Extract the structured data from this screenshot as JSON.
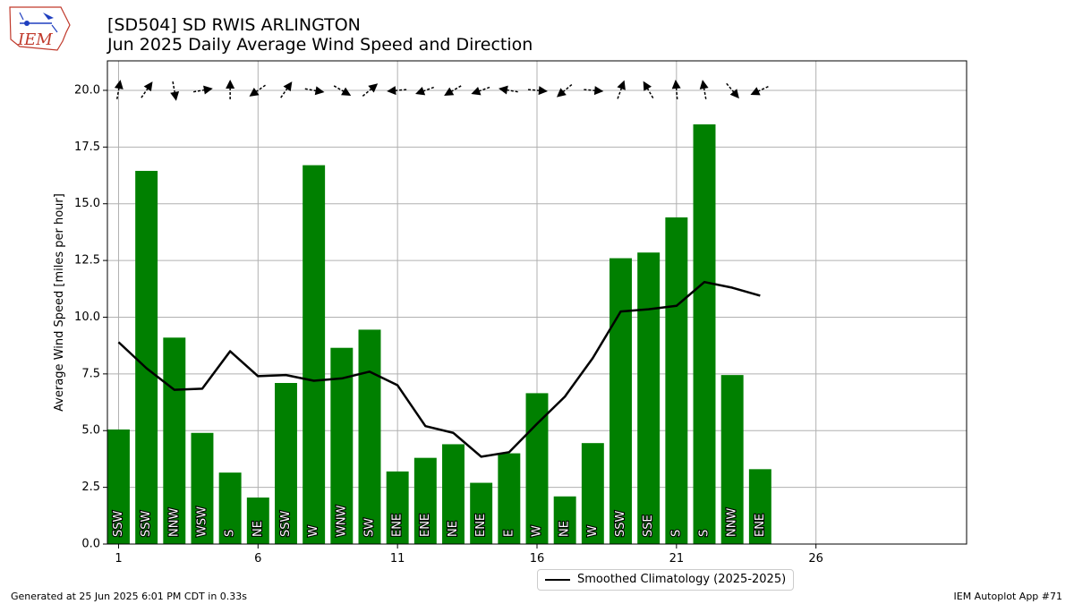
{
  "header": {
    "title": "[SD504] SD RWIS ARLINGTON",
    "subtitle": "Jun 2025 Daily Average Wind Speed and Direction"
  },
  "logo": {
    "text": "IEM",
    "color": "#c0392b"
  },
  "legend": {
    "label": "Smoothed Climatology (2025-2025)",
    "placement": "below-center"
  },
  "footer": {
    "generated": "Generated at 25 Jun 2025 6:01 PM CDT in 0.33s",
    "app": "IEM Autoplot App #71"
  },
  "chart_data": {
    "type": "bar",
    "ylabel": "Average Wind Speed [miles per hour]",
    "xlabel": "",
    "xlim": [
      0.6,
      31.4
    ],
    "ylim": [
      0,
      21.3
    ],
    "xticks": [
      1,
      6,
      11,
      16,
      21,
      26
    ],
    "yticks": [
      0.0,
      2.5,
      5.0,
      7.5,
      10.0,
      12.5,
      15.0,
      17.5,
      20.0
    ],
    "grid": true,
    "bar_color": "#008000",
    "line_color": "#000000",
    "days": [
      1,
      2,
      3,
      4,
      5,
      6,
      7,
      8,
      9,
      10,
      11,
      12,
      13,
      14,
      15,
      16,
      17,
      18,
      19,
      20,
      21,
      22,
      23,
      24
    ],
    "values": [
      5.05,
      16.45,
      9.1,
      4.9,
      3.15,
      2.05,
      7.1,
      16.7,
      8.65,
      9.45,
      3.2,
      3.8,
      4.4,
      2.7,
      4.0,
      6.65,
      2.1,
      4.45,
      12.6,
      12.85,
      14.4,
      18.5,
      7.45,
      3.3
    ],
    "directions": [
      "SSW",
      "SSW",
      "NNW",
      "WSW",
      "S",
      "NE",
      "SSW",
      "W",
      "WNW",
      "SW",
      "ENE",
      "ENE",
      "NE",
      "ENE",
      "E",
      "W",
      "NE",
      "W",
      "SSW",
      "SSE",
      "S",
      "S",
      "NNW",
      "ENE"
    ],
    "arrow_angles_deg": [
      -80,
      -55,
      80,
      -10,
      -90,
      145,
      -55,
      10,
      30,
      -40,
      175,
      160,
      150,
      160,
      -170,
      5,
      140,
      5,
      -70,
      -120,
      -95,
      -100,
      50,
      155
    ],
    "arrow_y": 20.0,
    "series": [
      {
        "name": "Smoothed Climatology (2025-2025)",
        "type": "line",
        "values": [
          8.9,
          7.75,
          6.8,
          6.85,
          8.5,
          7.4,
          7.45,
          7.2,
          7.3,
          7.6,
          7.0,
          5.2,
          4.9,
          3.85,
          4.05,
          5.3,
          6.5,
          8.2,
          10.25,
          10.35,
          10.5,
          11.55,
          11.3,
          10.95
        ]
      }
    ]
  }
}
